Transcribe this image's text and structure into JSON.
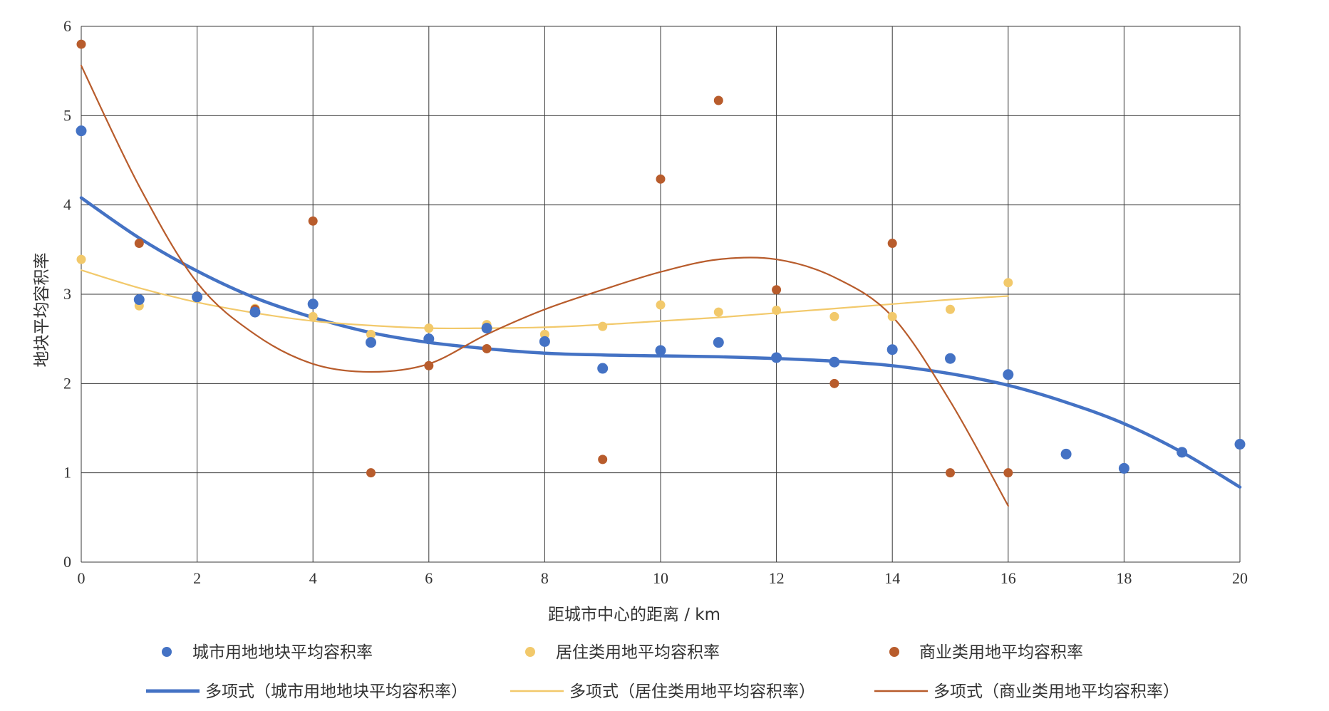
{
  "chart_data": {
    "type": "scatter",
    "xlabel": "距城市中心的距离 / km",
    "ylabel": "地块平均容积率",
    "xlim": [
      0,
      20
    ],
    "ylim": [
      0,
      6
    ],
    "x_ticks": [
      "0",
      "2",
      "4",
      "6",
      "8",
      "10",
      "12",
      "14",
      "16",
      "18",
      "20"
    ],
    "y_ticks": [
      "0",
      "1",
      "2",
      "3",
      "4",
      "5",
      "6"
    ],
    "grid": true,
    "legend_position": "bottom",
    "series": [
      {
        "name": "城市用地地块平均容积率",
        "color": "#4472C4",
        "x": [
          0,
          1,
          2,
          3,
          4,
          5,
          6,
          7,
          8,
          9,
          10,
          11,
          12,
          13,
          14,
          15,
          16,
          17,
          18,
          19,
          20
        ],
        "y": [
          4.83,
          2.94,
          2.97,
          2.8,
          2.89,
          2.46,
          2.5,
          2.62,
          2.47,
          2.17,
          2.37,
          2.46,
          2.29,
          2.24,
          2.38,
          2.28,
          2.1,
          1.21,
          1.05,
          1.23,
          1.32
        ]
      },
      {
        "name": "居住类用地平均容积率",
        "color": "#F2C96B",
        "x": [
          0,
          1,
          2,
          3,
          4,
          5,
          6,
          7,
          8,
          9,
          10,
          11,
          12,
          13,
          14,
          15,
          16
        ],
        "y": [
          3.39,
          2.87,
          2.98,
          2.84,
          2.75,
          2.55,
          2.62,
          2.66,
          2.55,
          2.64,
          2.88,
          2.8,
          2.82,
          2.75,
          2.75,
          2.83,
          3.13
        ]
      },
      {
        "name": "商业类用地平均容积率",
        "color": "#B85C2C",
        "x": [
          0,
          1,
          2,
          3,
          4,
          5,
          6,
          7,
          8,
          9,
          10,
          11,
          12,
          13,
          14,
          15,
          16
        ],
        "y": [
          5.8,
          3.57,
          2.98,
          2.83,
          3.82,
          1.0,
          2.2,
          2.39,
          null,
          1.15,
          4.29,
          5.17,
          3.05,
          2.0,
          3.57,
          1.0,
          1.0
        ]
      }
    ],
    "trendlines": [
      {
        "name": "多项式（城市用地地块平均容积率）",
        "series": 0,
        "type": "polynomial",
        "x_range": [
          0,
          20
        ],
        "color": "#4472C4"
      },
      {
        "name": "多项式（居住类用地平均容积率）",
        "series": 1,
        "type": "polynomial",
        "x_range": [
          0,
          16
        ],
        "color": "#F2C96B"
      },
      {
        "name": "多项式（商业类用地平均容积率）",
        "series": 2,
        "type": "polynomial",
        "x_range": [
          0,
          16
        ],
        "color": "#B85C2C"
      }
    ],
    "trend_samples": [
      {
        "x": [
          0,
          1,
          2,
          3,
          4,
          5,
          6,
          7,
          8,
          9,
          10,
          11,
          12,
          13,
          14,
          15,
          16,
          17,
          18,
          19,
          20
        ],
        "y": [
          4.08,
          3.63,
          3.26,
          2.96,
          2.74,
          2.57,
          2.46,
          2.39,
          2.34,
          2.32,
          2.31,
          2.3,
          2.28,
          2.25,
          2.2,
          2.11,
          1.98,
          1.79,
          1.55,
          1.23,
          0.84
        ]
      },
      {
        "x": [
          0,
          1,
          2,
          3,
          4,
          5,
          6,
          7,
          8,
          9,
          10,
          11,
          12,
          13,
          14,
          15,
          16
        ],
        "y": [
          3.27,
          3.07,
          2.91,
          2.79,
          2.7,
          2.65,
          2.62,
          2.62,
          2.63,
          2.66,
          2.7,
          2.74,
          2.79,
          2.84,
          2.89,
          2.94,
          2.98
        ]
      },
      {
        "x": [
          0,
          1,
          2,
          3,
          4,
          5,
          6,
          7,
          8,
          9,
          10,
          11,
          12,
          13,
          14,
          15,
          16
        ],
        "y": [
          5.56,
          4.21,
          3.13,
          2.55,
          2.22,
          2.13,
          2.22,
          2.55,
          2.83,
          3.05,
          3.25,
          3.39,
          3.39,
          3.19,
          2.75,
          1.8,
          0.63
        ]
      }
    ]
  }
}
